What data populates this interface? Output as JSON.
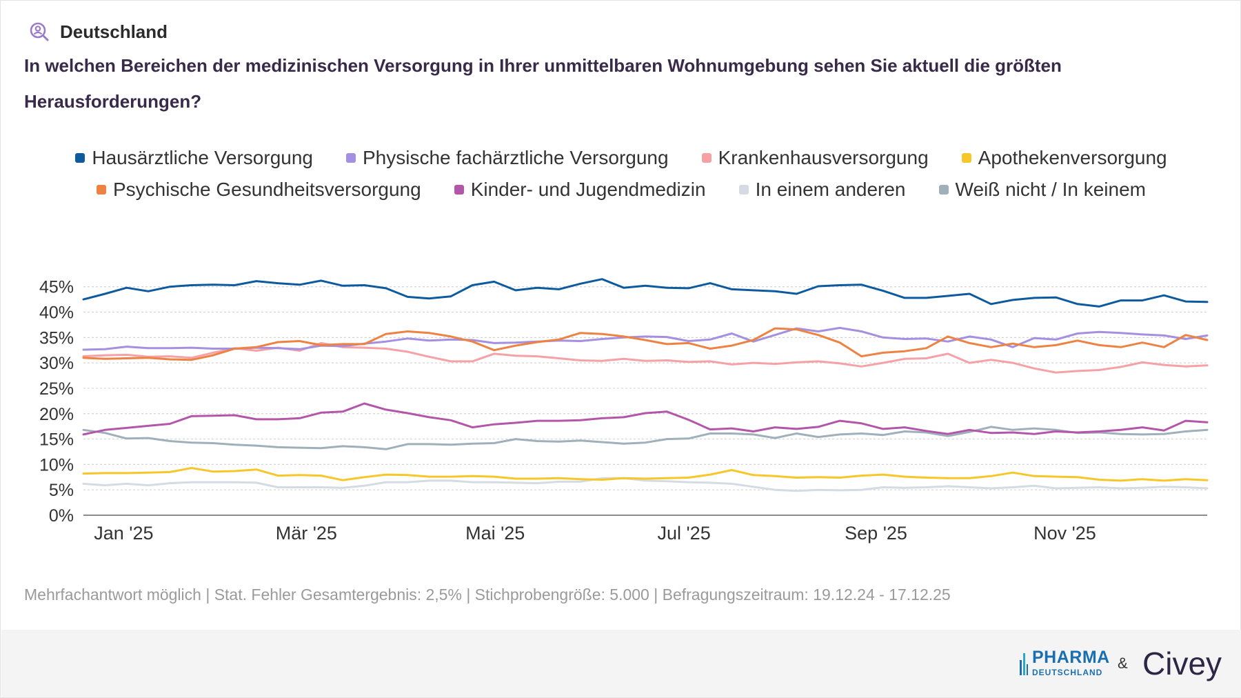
{
  "header": {
    "region": "Deutschland",
    "icon": "search-person-icon",
    "question": "In welchen Bereichen der medizinischen Versorgung in Ihrer unmittelbaren Wohnumgebung sehen Sie aktuell die größten Herausforderungen?"
  },
  "note": "Mehrfachantwort möglich | Stat. Fehler Gesamtergebnis: 2,5% | Stichprobengröße: 5.000 | Befragungszeitraum: 19.12.24 - 17.12.25",
  "logos": {
    "pharma_main": "PHARMA",
    "pharma_sub": "DEUTSCHLAND",
    "ampersand": "&",
    "civey": "Civey"
  },
  "chart_data": {
    "type": "line",
    "x_ticks": [
      "Jan '25",
      "Mär '25",
      "Mai '25",
      "Jul '25",
      "Sep '25",
      "Nov '25"
    ],
    "y_ticks": [
      "0%",
      "5%",
      "10%",
      "15%",
      "20%",
      "25%",
      "30%",
      "35%",
      "40%",
      "45%"
    ],
    "ylim": [
      0,
      47
    ],
    "grid": true,
    "legend_position": "top",
    "x_range": [
      "2024-12-19",
      "2025-12-17"
    ],
    "x_step_days": 7,
    "series": [
      {
        "name": "Hausärztliche Versorgung",
        "color": "#0d5a9e",
        "values": [
          42.5,
          43.6,
          44.8,
          44.1,
          45.0,
          45.3,
          45.4,
          45.3,
          46.1,
          45.7,
          45.4,
          46.2,
          45.2,
          45.3,
          44.7,
          43.0,
          42.7,
          43.1,
          45.3,
          46.0,
          44.3,
          44.8,
          44.5,
          45.6,
          46.5,
          44.8,
          45.2,
          44.8,
          44.7,
          45.7,
          44.5,
          44.3,
          44.1,
          43.6,
          45.1,
          45.3,
          45.4,
          44.2,
          42.8,
          42.8,
          43.2,
          43.6,
          41.6,
          42.4,
          42.8,
          42.9,
          41.6,
          41.1,
          42.3,
          42.3,
          43.3,
          42.1,
          42.0
        ]
      },
      {
        "name": "Physische fachärztliche Versorgung",
        "color": "#a48fe0",
        "values": [
          32.6,
          32.7,
          33.2,
          32.9,
          32.9,
          33.0,
          32.8,
          32.8,
          33.0,
          32.9,
          32.7,
          33.4,
          33.3,
          33.8,
          34.2,
          34.8,
          34.4,
          34.6,
          34.5,
          33.9,
          34.0,
          34.2,
          34.4,
          34.3,
          34.7,
          35.0,
          35.2,
          35.1,
          34.3,
          34.6,
          35.8,
          34.2,
          35.5,
          36.8,
          36.2,
          36.9,
          36.2,
          35.0,
          34.7,
          34.8,
          34.2,
          35.2,
          34.6,
          33.1,
          34.9,
          34.6,
          35.8,
          36.1,
          35.9,
          35.6,
          35.4,
          34.7,
          35.4
        ]
      },
      {
        "name": "Krankenhausversorgung",
        "color": "#f6a1a6",
        "values": [
          31.3,
          31.5,
          31.6,
          31.2,
          31.3,
          31.0,
          32.0,
          32.9,
          32.4,
          33.0,
          32.4,
          33.9,
          33.1,
          33.0,
          32.8,
          32.2,
          31.2,
          30.3,
          30.3,
          31.8,
          31.4,
          31.3,
          30.9,
          30.5,
          30.4,
          30.8,
          30.4,
          30.5,
          30.2,
          30.3,
          29.7,
          30.0,
          29.8,
          30.1,
          30.3,
          29.9,
          29.3,
          30.0,
          30.8,
          30.9,
          31.8,
          30.0,
          30.6,
          30.0,
          28.9,
          28.1,
          28.4,
          28.6,
          29.2,
          30.1,
          29.6,
          29.3,
          29.5
        ]
      },
      {
        "name": "Apothekenversorgung",
        "color": "#f7c72a",
        "values": [
          8.2,
          8.3,
          8.3,
          8.4,
          8.5,
          9.3,
          8.6,
          8.7,
          9.0,
          7.8,
          7.9,
          7.8,
          6.9,
          7.5,
          8.0,
          7.9,
          7.6,
          7.6,
          7.7,
          7.6,
          7.2,
          7.2,
          7.3,
          7.1,
          7.0,
          7.3,
          7.2,
          7.3,
          7.4,
          8.0,
          8.9,
          7.9,
          7.7,
          7.4,
          7.5,
          7.4,
          7.8,
          8.0,
          7.6,
          7.4,
          7.3,
          7.3,
          7.7,
          8.4,
          7.7,
          7.6,
          7.5,
          7.0,
          6.8,
          7.1,
          6.8,
          7.1,
          6.9
        ]
      },
      {
        "name": "Psychische Gesundheitsversorgung",
        "color": "#ee8243",
        "values": [
          31.0,
          30.8,
          30.9,
          31.0,
          30.7,
          30.6,
          31.5,
          32.8,
          33.1,
          34.1,
          34.3,
          33.5,
          33.7,
          33.7,
          35.7,
          36.2,
          35.9,
          35.2,
          34.2,
          32.5,
          33.4,
          34.1,
          34.6,
          35.9,
          35.7,
          35.2,
          34.5,
          33.7,
          33.9,
          32.8,
          33.4,
          34.5,
          36.8,
          36.6,
          35.5,
          34.0,
          31.3,
          32.0,
          32.3,
          32.9,
          35.2,
          33.9,
          33.1,
          33.8,
          33.1,
          33.5,
          34.4,
          33.5,
          33.1,
          34.0,
          33.1,
          35.5,
          34.5
        ]
      },
      {
        "name": "Kinder- und Jugendmedizin",
        "color": "#b356aa",
        "values": [
          15.9,
          16.8,
          17.2,
          17.6,
          18.0,
          19.5,
          19.6,
          19.7,
          18.9,
          18.9,
          19.1,
          20.2,
          20.4,
          22.0,
          20.8,
          20.1,
          19.3,
          18.7,
          17.3,
          17.9,
          18.2,
          18.6,
          18.6,
          18.7,
          19.1,
          19.3,
          20.1,
          20.4,
          18.8,
          16.9,
          17.1,
          16.5,
          17.3,
          17.0,
          17.4,
          18.6,
          18.1,
          17.0,
          17.3,
          16.6,
          16.0,
          16.8,
          16.2,
          16.3,
          16.0,
          16.5,
          16.3,
          16.5,
          16.8,
          17.3,
          16.7,
          18.6,
          18.3
        ]
      },
      {
        "name": "In einem anderen",
        "color": "#d4dbe3",
        "values": [
          6.2,
          5.9,
          6.2,
          5.9,
          6.3,
          6.5,
          6.5,
          6.5,
          6.4,
          5.5,
          5.5,
          5.5,
          5.4,
          5.8,
          6.5,
          6.5,
          6.8,
          6.8,
          6.5,
          6.5,
          6.4,
          6.3,
          6.6,
          6.6,
          7.3,
          7.3,
          6.8,
          6.7,
          6.5,
          6.4,
          6.2,
          5.6,
          5.0,
          4.8,
          5.0,
          4.9,
          5.0,
          5.5,
          5.4,
          5.5,
          5.7,
          5.5,
          5.3,
          5.5,
          5.8,
          5.3,
          5.4,
          5.5,
          5.3,
          5.4,
          5.6,
          5.5,
          5.3
        ]
      },
      {
        "name": "Weiß nicht / In keinem",
        "color": "#9fb0bb",
        "values": [
          16.8,
          16.2,
          15.1,
          15.2,
          14.6,
          14.3,
          14.2,
          13.9,
          13.7,
          13.4,
          13.3,
          13.2,
          13.6,
          13.4,
          13.0,
          14.0,
          14.0,
          13.9,
          14.1,
          14.2,
          15.0,
          14.6,
          14.5,
          14.7,
          14.4,
          14.1,
          14.3,
          15.0,
          15.1,
          16.1,
          16.1,
          15.9,
          15.2,
          16.1,
          15.4,
          15.9,
          16.1,
          15.8,
          16.5,
          16.3,
          15.6,
          16.4,
          17.4,
          16.8,
          17.1,
          16.8,
          16.2,
          16.3,
          16.0,
          15.9,
          16.0,
          16.5,
          16.8
        ]
      }
    ]
  }
}
